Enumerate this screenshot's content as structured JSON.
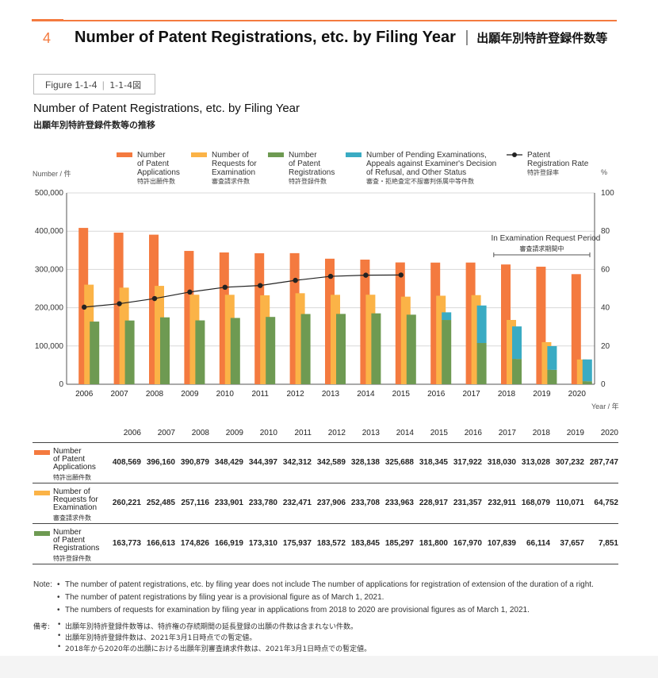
{
  "section": {
    "number": "4",
    "title": "Number of Patent Registrations, etc. by Filing Year",
    "title_separator": "|",
    "title_jp": "出願年別特許登録件数等"
  },
  "figure": {
    "label": "Figure 1-1-4",
    "separator": "|",
    "label_jp": "1-1-4図"
  },
  "chart_title": "Number of Patent Registrations, etc. by Filing Year",
  "chart_title_jp": "出願年別特許登録件数等の推移",
  "axis_units": {
    "left": "Number / 件",
    "right": "%",
    "bottom": "Year / 年"
  },
  "legend": [
    {
      "label": "Number\nof Patent\nApplications",
      "jp": "特許出願件数",
      "color": "#f47a3f"
    },
    {
      "label": "Number of\nRequests for\nExamination",
      "jp": "審査請求件数",
      "color": "#fbb347"
    },
    {
      "label": "Number\nof Patent\nRegistrations",
      "jp": "特許登録件数",
      "color": "#6e9a52"
    },
    {
      "label": "Number of Pending Examinations,\nAppeals against Examiner's Decision\nof Refusal, and Other Status",
      "jp": "審査・拒絶査定不服審判係属中等件数",
      "color": "#3aabc3"
    },
    {
      "label": "Patent\nRegistration Rate",
      "jp": "特許登録率",
      "color": "#222222"
    }
  ],
  "annotation": {
    "text": "In Examination Request Period",
    "text_jp": "審査請求期間中"
  },
  "chart_data": {
    "type": "bar",
    "categories": [
      "2006",
      "2007",
      "2008",
      "2009",
      "2010",
      "2011",
      "2012",
      "2013",
      "2014",
      "2015",
      "2016",
      "2017",
      "2018",
      "2019",
      "2020"
    ],
    "ylim": [
      0,
      500000
    ],
    "y2lim": [
      0,
      100
    ],
    "yticks": [
      "0",
      "100,000",
      "200,000",
      "300,000",
      "400,000",
      "500,000"
    ],
    "y2ticks": [
      "0",
      "20",
      "40",
      "60",
      "80",
      "100"
    ],
    "series": [
      {
        "name": "Number of Patent Applications",
        "values": [
          408569,
          396160,
          390879,
          348429,
          344397,
          342312,
          342589,
          328138,
          325688,
          318345,
          317922,
          318030,
          313028,
          307232,
          287747
        ]
      },
      {
        "name": "Number of Requests for Examination",
        "values": [
          260221,
          252485,
          257116,
          233901,
          233780,
          232471,
          237906,
          233708,
          233963,
          228917,
          231357,
          232911,
          168079,
          110071,
          64752
        ]
      },
      {
        "name": "Number of Patent Registrations",
        "values": [
          163773,
          166613,
          174826,
          166919,
          173310,
          175937,
          183572,
          183845,
          185297,
          181800,
          167970,
          107839,
          66114,
          37657,
          7851
        ]
      },
      {
        "name": "Number of Pending Examinations, Appeals against Examiner's Decision of Refusal, and Other Status",
        "values": [
          0,
          0,
          0,
          0,
          0,
          0,
          0,
          0,
          0,
          0,
          20000,
          98000,
          85000,
          62000,
          57000
        ]
      },
      {
        "name": "Patent Registration Rate",
        "type": "line",
        "axis": "right",
        "values": [
          40.3,
          42.1,
          44.8,
          48.2,
          50.7,
          51.6,
          54.3,
          56.4,
          57.0,
          57.1,
          null,
          null,
          null,
          null,
          null
        ]
      }
    ]
  },
  "table": {
    "years": [
      "2006",
      "2007",
      "2008",
      "2009",
      "2010",
      "2011",
      "2012",
      "2013",
      "2014",
      "2015",
      "2016",
      "2017",
      "2018",
      "2019",
      "2020"
    ],
    "rows": [
      {
        "label": "Number\nof Patent\nApplications",
        "jp": "特許出願件数",
        "color": "#f47a3f",
        "values": [
          "408,569",
          "396,160",
          "390,879",
          "348,429",
          "344,397",
          "342,312",
          "342,589",
          "328,138",
          "325,688",
          "318,345",
          "317,922",
          "318,030",
          "313,028",
          "307,232",
          "287,747"
        ]
      },
      {
        "label": "Number of\nRequests for\nExamination",
        "jp": "審査請求件数",
        "color": "#fbb347",
        "values": [
          "260,221",
          "252,485",
          "257,116",
          "233,901",
          "233,780",
          "232,471",
          "237,906",
          "233,708",
          "233,963",
          "228,917",
          "231,357",
          "232,911",
          "168,079",
          "110,071",
          "64,752"
        ]
      },
      {
        "label": "Number\nof Patent\nRegistrations",
        "jp": "特許登録件数",
        "color": "#6e9a52",
        "values": [
          "163,773",
          "166,613",
          "174,826",
          "166,919",
          "173,310",
          "175,937",
          "183,572",
          "183,845",
          "185,297",
          "181,800",
          "167,970",
          "107,839",
          "66,114",
          "37,657",
          "7,851"
        ]
      }
    ]
  },
  "notes": {
    "head": "Note:",
    "bullet": "•",
    "items": [
      "The number of patent registrations, etc. by filing year does not include The number of applications for registration of extension of the duration of a right.",
      "The number of patent registrations by filing year is a provisional figure as of March 1, 2021.",
      "The numbers of requests for examination by filing year in applications from 2018 to 2020 are provisional figures as of March 1, 2021."
    ],
    "head_jp": "備考:",
    "items_jp": [
      "出願年別特許登録件数等は、特許権の存続期間の延長登録の出願の件数は含まれない件数。",
      "出願年別特許登録件数は、2021年3月1日時点での暫定値。",
      "2018年から2020年の出願における出願年別審査請求件数は、2021年3月1日時点での暫定値。"
    ]
  }
}
